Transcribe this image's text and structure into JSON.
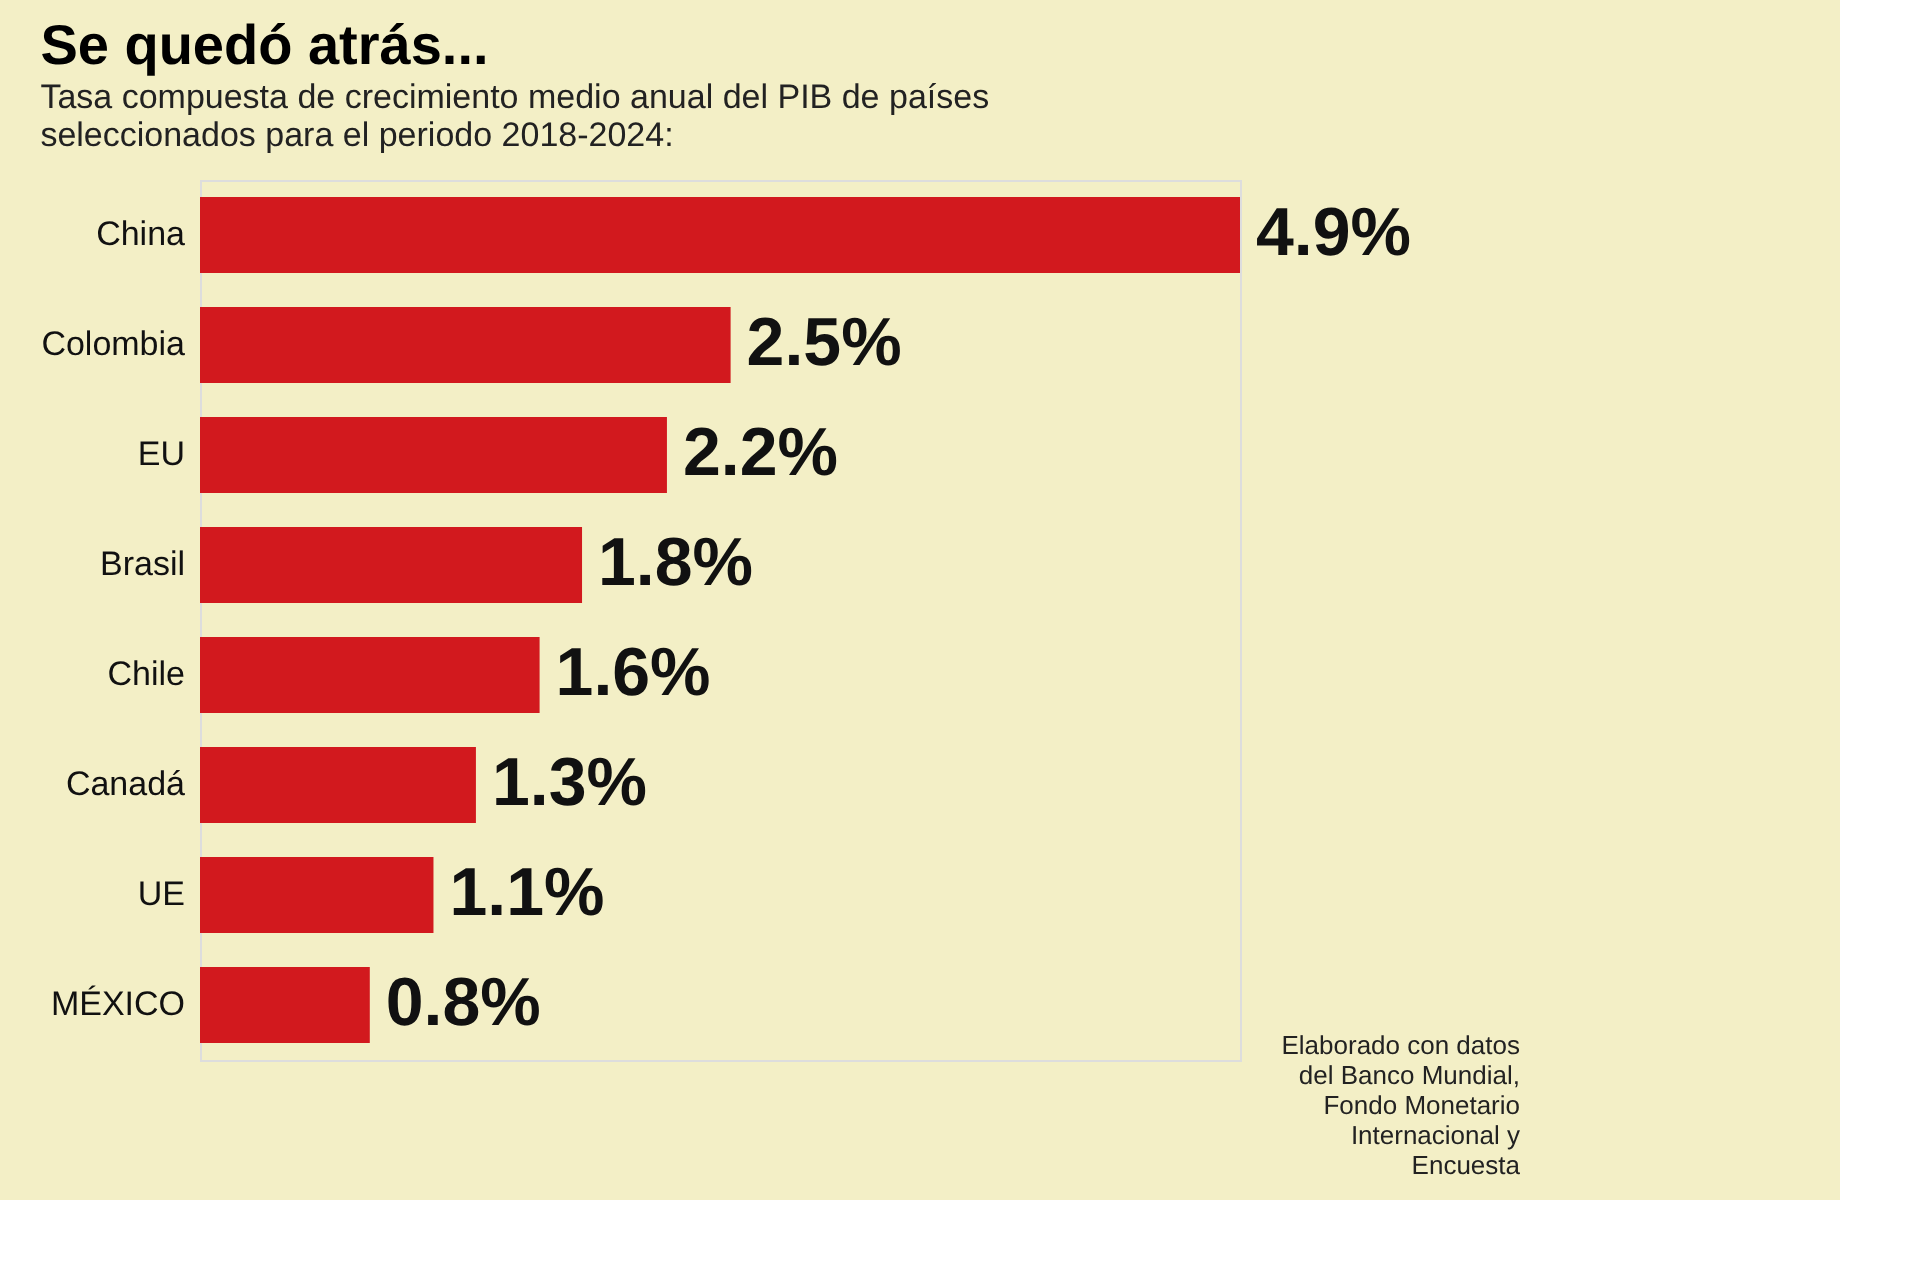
{
  "chart_data": {
    "type": "bar",
    "orientation": "horizontal",
    "title": "Se quedó atrás...",
    "subtitle": "Tasa compuesta de crecimiento medio anual del PIB de países seleccionados para el periodo 2018-2024:",
    "categories": [
      "China",
      "Colombia",
      "EU",
      "Brasil",
      "Chile",
      "Canadá",
      "UE",
      "MÉXICO"
    ],
    "values": [
      4.9,
      2.5,
      2.2,
      1.8,
      1.6,
      1.3,
      1.1,
      0.8
    ],
    "value_labels": [
      "4.9%",
      "2.5%",
      "2.2%",
      "1.8%",
      "1.6%",
      "1.3%",
      "1.1%",
      "0.8%"
    ],
    "color": "#d2191e",
    "annotations": [
      "Elaborado con datos del Banco Mundial, Fondo Monetario Internacional y Encuesta"
    ]
  }
}
